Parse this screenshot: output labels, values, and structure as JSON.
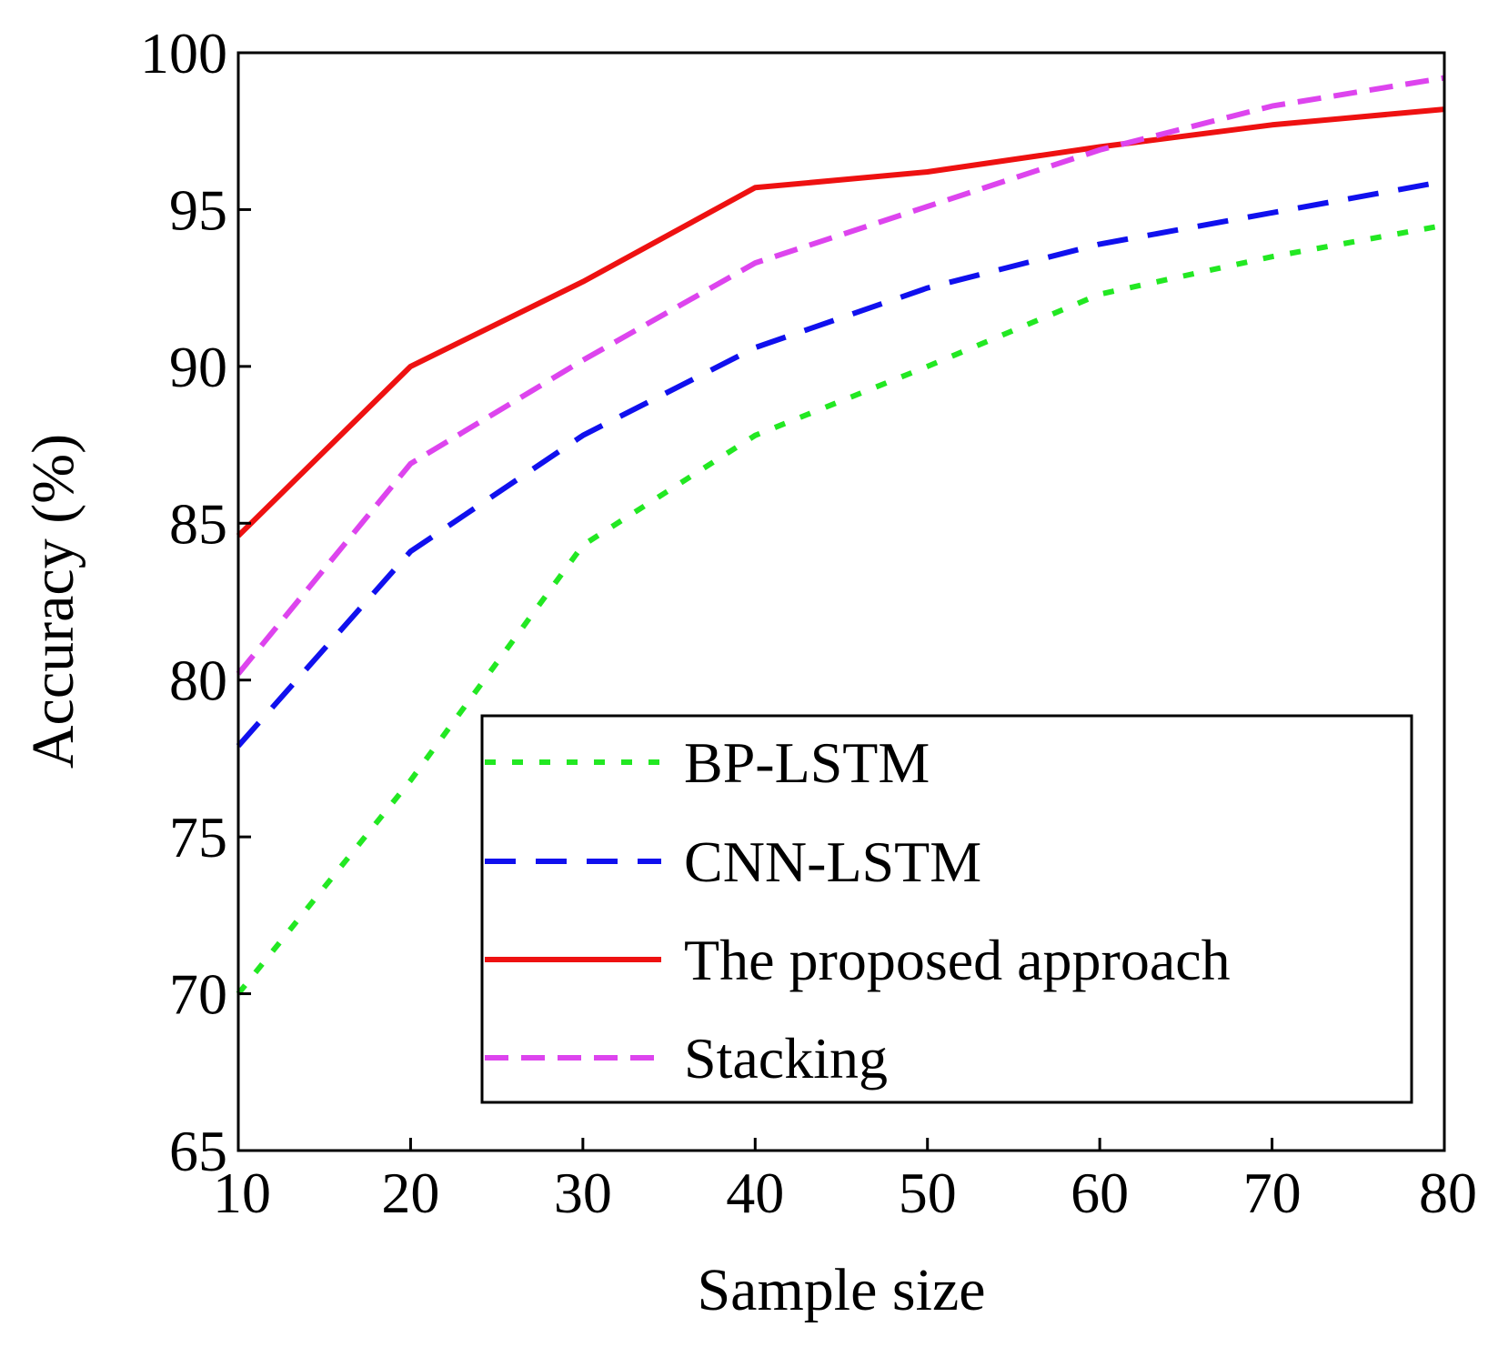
{
  "chart_data": {
    "type": "line",
    "title": "",
    "xlabel": "Sample size",
    "ylabel": "Accuracy (%)",
    "x": [
      10,
      20,
      30,
      40,
      50,
      60,
      70,
      80
    ],
    "xlim": [
      10,
      80
    ],
    "ylim": [
      65,
      100
    ],
    "xticks": [
      10,
      20,
      30,
      40,
      50,
      60,
      70,
      80
    ],
    "yticks": [
      65,
      70,
      75,
      80,
      85,
      90,
      95,
      100
    ],
    "grid": false,
    "legend_position": "bottom-right",
    "series": [
      {
        "name": "BP-LSTM",
        "values": [
          70.0,
          76.8,
          84.3,
          87.8,
          90.0,
          92.3,
          93.5,
          94.5
        ],
        "color": "#22e822",
        "style": "dotted"
      },
      {
        "name": "CNN-LSTM",
        "values": [
          77.9,
          84.1,
          87.8,
          90.6,
          92.5,
          93.9,
          94.9,
          95.9
        ],
        "color": "#1010ee",
        "style": "dashed"
      },
      {
        "name": "The proposed approach",
        "values": [
          84.6,
          90.0,
          92.7,
          95.7,
          96.2,
          97.0,
          97.7,
          98.2
        ],
        "color": "#ee1111",
        "style": "solid"
      },
      {
        "name": "Stacking",
        "values": [
          80.2,
          86.9,
          90.2,
          93.3,
          95.1,
          96.9,
          98.3,
          99.2
        ],
        "color": "#dd44ee",
        "style": "short-dashed"
      }
    ]
  }
}
